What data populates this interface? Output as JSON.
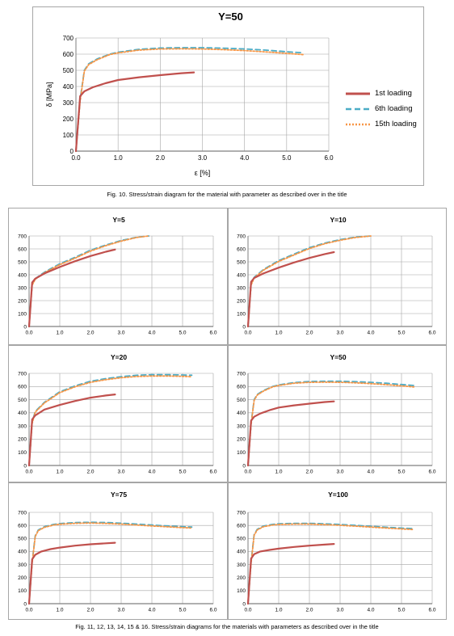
{
  "colors": {
    "first": "#c0504d",
    "sixth": "#4bacc6",
    "fifteenth": "#f79646",
    "grid": "#a6a6a6",
    "axis": "#7f7f7f",
    "panel_border": "#a6a6a6"
  },
  "legend": {
    "first": "1st loading",
    "sixth": "6th loading",
    "fifteenth": "15th loading"
  },
  "captions": {
    "fig10": "Fig. 10. Stress/strain diagram for the material with parameter as described over in the title",
    "fig11_16": "Fig. 11, 12, 13, 14, 15 & 16. Stress/strain diagrams for the materials with parameters as described over in the title"
  },
  "chart_data": [
    {
      "id": "main",
      "type": "line",
      "title": "Υ=50",
      "xlabel": "ε [%]",
      "ylabel": "δ [MPa]",
      "xlim": [
        0,
        6
      ],
      "ylim": [
        0,
        700
      ],
      "xticks": [
        "0.0",
        "1.0",
        "2.0",
        "3.0",
        "4.0",
        "5.0",
        "6.0"
      ],
      "yticks": [
        "0",
        "100",
        "200",
        "300",
        "400",
        "500",
        "600",
        "700"
      ],
      "grid": true,
      "legend_position": "right",
      "series": [
        {
          "name": "1st loading",
          "x": [
            0,
            0.1,
            0.2,
            0.4,
            0.7,
            1.0,
            1.5,
            2.0,
            2.5,
            2.8
          ],
          "y": [
            0,
            340,
            370,
            395,
            420,
            440,
            457,
            470,
            482,
            487
          ]
        },
        {
          "name": "6th loading",
          "x": [
            0,
            0.1,
            0.2,
            0.3,
            0.5,
            0.8,
            1.0,
            1.5,
            2.0,
            2.5,
            3.0,
            3.5,
            4.0,
            4.5,
            5.0,
            5.4
          ],
          "y": [
            0,
            320,
            500,
            540,
            570,
            600,
            612,
            630,
            638,
            640,
            640,
            637,
            632,
            625,
            615,
            608
          ]
        },
        {
          "name": "15th loading",
          "x": [
            0,
            0.1,
            0.2,
            0.3,
            0.5,
            0.8,
            1.0,
            1.5,
            2.0,
            2.5,
            3.0,
            3.5,
            4.0,
            4.5,
            5.0,
            5.4
          ],
          "y": [
            0,
            310,
            495,
            535,
            565,
            597,
            608,
            625,
            632,
            633,
            632,
            628,
            622,
            614,
            605,
            597
          ]
        }
      ]
    },
    {
      "id": "g5",
      "type": "line",
      "title": "Υ=5",
      "xlim": [
        0,
        6
      ],
      "ylim": [
        0,
        700
      ],
      "xticks": [
        "0.0",
        "1.0",
        "2.0",
        "3.0",
        "4.0",
        "5.0",
        "6.0"
      ],
      "yticks": [
        "0",
        "100",
        "200",
        "300",
        "400",
        "500",
        "600",
        "700"
      ],
      "grid": true,
      "series": [
        {
          "name": "1st loading",
          "x": [
            0,
            0.1,
            0.2,
            0.5,
            1.0,
            1.5,
            2.0,
            2.5,
            2.8
          ],
          "y": [
            0,
            340,
            370,
            410,
            460,
            505,
            545,
            578,
            595
          ]
        },
        {
          "name": "6th loading",
          "x": [
            0,
            0.1,
            0.2,
            0.5,
            1.0,
            1.5,
            2.0,
            2.5,
            3.0,
            3.5,
            3.9
          ],
          "y": [
            0,
            330,
            370,
            420,
            485,
            535,
            590,
            630,
            665,
            690,
            700
          ]
        },
        {
          "name": "15th loading",
          "x": [
            0,
            0.1,
            0.2,
            0.5,
            1.0,
            1.5,
            2.0,
            2.5,
            3.0,
            3.5,
            3.9
          ],
          "y": [
            0,
            320,
            365,
            415,
            478,
            528,
            583,
            625,
            660,
            688,
            700
          ]
        }
      ]
    },
    {
      "id": "g10",
      "type": "line",
      "title": "Υ=10",
      "xlim": [
        0,
        6
      ],
      "ylim": [
        0,
        700
      ],
      "xticks": [
        "0.0",
        "1.0",
        "2.0",
        "3.0",
        "4.0",
        "5.0",
        "6.0"
      ],
      "yticks": [
        "0",
        "100",
        "200",
        "300",
        "400",
        "500",
        "600",
        "700"
      ],
      "grid": true,
      "series": [
        {
          "name": "1st loading",
          "x": [
            0,
            0.1,
            0.2,
            0.5,
            1.0,
            1.5,
            2.0,
            2.5,
            2.8
          ],
          "y": [
            0,
            345,
            375,
            410,
            455,
            495,
            530,
            560,
            575
          ]
        },
        {
          "name": "6th loading",
          "x": [
            0,
            0.1,
            0.2,
            0.5,
            1.0,
            1.5,
            2.0,
            2.5,
            3.0,
            3.5,
            4.0
          ],
          "y": [
            0,
            330,
            380,
            440,
            510,
            560,
            610,
            645,
            672,
            692,
            700
          ]
        },
        {
          "name": "15th loading",
          "x": [
            0,
            0.1,
            0.2,
            0.5,
            1.0,
            1.5,
            2.0,
            2.5,
            3.0,
            3.5,
            4.0
          ],
          "y": [
            0,
            320,
            375,
            435,
            503,
            553,
            603,
            640,
            667,
            688,
            700
          ]
        }
      ]
    },
    {
      "id": "g20",
      "type": "line",
      "title": "Υ=20",
      "xlim": [
        0,
        6
      ],
      "ylim": [
        0,
        700
      ],
      "xticks": [
        "0.0",
        "1.0",
        "2.0",
        "3.0",
        "4.0",
        "5.0",
        "6.0"
      ],
      "yticks": [
        "0",
        "100",
        "200",
        "300",
        "400",
        "500",
        "600",
        "700"
      ],
      "grid": true,
      "series": [
        {
          "name": "1st loading",
          "x": [
            0,
            0.1,
            0.2,
            0.5,
            1.0,
            1.5,
            2.0,
            2.5,
            2.8
          ],
          "y": [
            0,
            350,
            380,
            425,
            460,
            490,
            515,
            532,
            540
          ]
        },
        {
          "name": "6th loading",
          "x": [
            0,
            0.1,
            0.2,
            0.5,
            1.0,
            1.5,
            2.0,
            2.5,
            3.0,
            3.5,
            4.0,
            4.5,
            5.0,
            5.3
          ],
          "y": [
            0,
            330,
            410,
            480,
            560,
            605,
            640,
            660,
            675,
            685,
            690,
            690,
            688,
            686
          ]
        },
        {
          "name": "15th loading",
          "x": [
            0,
            0.1,
            0.2,
            0.5,
            1.0,
            1.5,
            2.0,
            2.5,
            3.0,
            3.5,
            4.0,
            4.5,
            5.0,
            5.3
          ],
          "y": [
            0,
            320,
            405,
            475,
            553,
            598,
            632,
            652,
            667,
            676,
            680,
            680,
            677,
            675
          ]
        }
      ]
    },
    {
      "id": "g50",
      "type": "line",
      "title": "Υ=50",
      "xlim": [
        0,
        6
      ],
      "ylim": [
        0,
        700
      ],
      "xticks": [
        "0.0",
        "1.0",
        "2.0",
        "3.0",
        "4.0",
        "5.0",
        "6.0"
      ],
      "yticks": [
        "0",
        "100",
        "200",
        "300",
        "400",
        "500",
        "600",
        "700"
      ],
      "grid": true,
      "series": [
        {
          "name": "1st loading",
          "x": [
            0,
            0.1,
            0.2,
            0.4,
            0.7,
            1.0,
            1.5,
            2.0,
            2.5,
            2.8
          ],
          "y": [
            0,
            340,
            370,
            395,
            420,
            440,
            457,
            470,
            482,
            487
          ]
        },
        {
          "name": "6th loading",
          "x": [
            0,
            0.1,
            0.2,
            0.3,
            0.5,
            0.8,
            1.0,
            1.5,
            2.0,
            2.5,
            3.0,
            3.5,
            4.0,
            4.5,
            5.0,
            5.4
          ],
          "y": [
            0,
            320,
            500,
            540,
            570,
            600,
            612,
            630,
            638,
            640,
            640,
            637,
            632,
            625,
            615,
            608
          ]
        },
        {
          "name": "15th loading",
          "x": [
            0,
            0.1,
            0.2,
            0.3,
            0.5,
            0.8,
            1.0,
            1.5,
            2.0,
            2.5,
            3.0,
            3.5,
            4.0,
            4.5,
            5.0,
            5.4
          ],
          "y": [
            0,
            310,
            495,
            535,
            565,
            597,
            608,
            625,
            632,
            633,
            632,
            628,
            622,
            614,
            605,
            597
          ]
        }
      ]
    },
    {
      "id": "g75",
      "type": "line",
      "title": "Υ=75",
      "xlim": [
        0,
        6
      ],
      "ylim": [
        0,
        700
      ],
      "xticks": [
        "0.0",
        "1.0",
        "2.0",
        "3.0",
        "4.0",
        "5.0",
        "6.0"
      ],
      "yticks": [
        "0",
        "100",
        "200",
        "300",
        "400",
        "500",
        "600",
        "700"
      ],
      "grid": true,
      "series": [
        {
          "name": "1st loading",
          "x": [
            0,
            0.1,
            0.2,
            0.4,
            0.7,
            1.0,
            1.5,
            2.0,
            2.5,
            2.8
          ],
          "y": [
            0,
            340,
            375,
            400,
            418,
            430,
            445,
            455,
            463,
            467
          ]
        },
        {
          "name": "6th loading",
          "x": [
            0,
            0.1,
            0.2,
            0.3,
            0.5,
            0.8,
            1.0,
            1.5,
            2.0,
            2.5,
            3.0,
            3.5,
            4.0,
            4.5,
            5.0,
            5.3
          ],
          "y": [
            0,
            320,
            520,
            565,
            590,
            608,
            614,
            622,
            624,
            622,
            617,
            610,
            603,
            596,
            590,
            587
          ]
        },
        {
          "name": "15th loading",
          "x": [
            0,
            0.1,
            0.2,
            0.3,
            0.5,
            0.8,
            1.0,
            1.5,
            2.0,
            2.5,
            3.0,
            3.5,
            4.0,
            4.5,
            5.0,
            5.3
          ],
          "y": [
            0,
            310,
            515,
            560,
            585,
            603,
            609,
            616,
            618,
            615,
            610,
            603,
            596,
            589,
            583,
            580
          ]
        }
      ]
    },
    {
      "id": "g100",
      "type": "line",
      "title": "Υ=100",
      "xlim": [
        0,
        6
      ],
      "ylim": [
        0,
        700
      ],
      "xticks": [
        "0.0",
        "1.0",
        "2.0",
        "3.0",
        "4.0",
        "5.0",
        "6.0"
      ],
      "yticks": [
        "0",
        "100",
        "200",
        "300",
        "400",
        "500",
        "600",
        "700"
      ],
      "grid": true,
      "series": [
        {
          "name": "1st loading",
          "x": [
            0,
            0.1,
            0.2,
            0.4,
            0.7,
            1.0,
            1.5,
            2.0,
            2.5,
            2.8
          ],
          "y": [
            0,
            345,
            380,
            400,
            412,
            422,
            435,
            445,
            453,
            458
          ]
        },
        {
          "name": "6th loading",
          "x": [
            0,
            0.1,
            0.2,
            0.3,
            0.5,
            0.8,
            1.0,
            1.5,
            2.0,
            2.5,
            3.0,
            3.5,
            4.0,
            4.5,
            5.0,
            5.4
          ],
          "y": [
            0,
            320,
            530,
            570,
            595,
            608,
            612,
            616,
            616,
            612,
            607,
            600,
            593,
            586,
            579,
            575
          ]
        },
        {
          "name": "15th loading",
          "x": [
            0,
            0.1,
            0.2,
            0.3,
            0.5,
            0.8,
            1.0,
            1.5,
            2.0,
            2.5,
            3.0,
            3.5,
            4.0,
            4.5,
            5.0,
            5.4
          ],
          "y": [
            0,
            310,
            525,
            565,
            590,
            603,
            607,
            610,
            610,
            606,
            601,
            594,
            587,
            580,
            573,
            568
          ]
        }
      ]
    }
  ]
}
